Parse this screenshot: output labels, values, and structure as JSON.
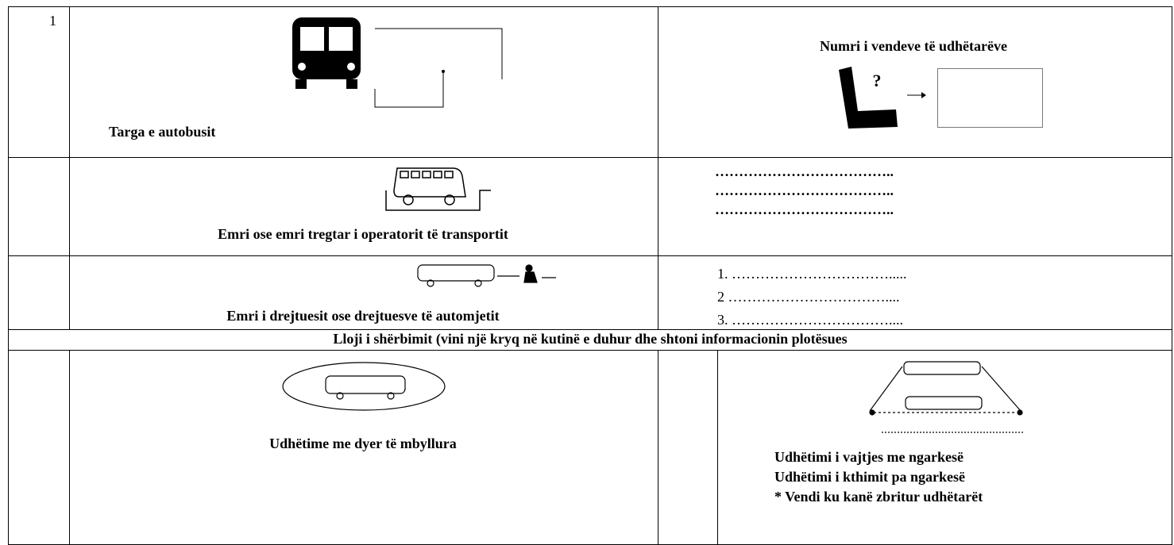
{
  "table": {
    "rows": [
      {
        "number": "1",
        "left_label": "Targa e autobusit",
        "right_label": "Numri i vendeve të udhëtarëve",
        "right_icon_text": "?"
      },
      {
        "left_label": "Emri ose emri tregtar i operatorit të transportit",
        "right_lines": [
          "………………………………..",
          "………………………………..",
          "……………………………….."
        ]
      },
      {
        "left_label": "Emri i drejtuesit ose drejtuesve të automjetit",
        "right_lines": [
          "1. …………………………….....",
          "2 ……………………………....",
          "3. ……………………………...."
        ]
      },
      {
        "header": "Lloji i shërbimit (vini një kryq në kutinë e duhur dhe shtoni informacionin plotësues"
      },
      {
        "left_label": "Udhëtime me dyer të mbyllura",
        "right_lines": [
          "Udhëtimi i vajtjes me ngarkesë",
          "Udhëtimi i kthimit pa ngarkesë",
          "* Vendi ku kanë zbritur udhëtarët"
        ]
      }
    ]
  }
}
